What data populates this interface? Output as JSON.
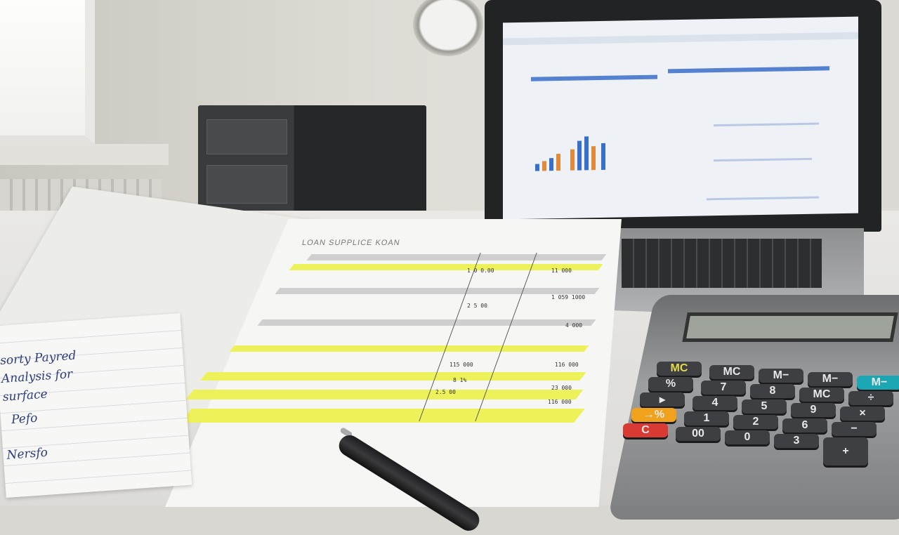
{
  "scene": {
    "document_title": "LOAN SUPPLICE KOAN",
    "document_values": [
      "1 0 0.00",
      "11 000",
      "1 059 1000",
      "2 5 00",
      "4 000",
      "115 000",
      "116 000",
      "8 1%",
      "2.5 00",
      "23 000",
      "116 000"
    ],
    "handwriting": [
      "sorty Payred",
      "Analysis for",
      "surface",
      "Pefo",
      "Nersfo"
    ],
    "calculator_keys": [
      [
        "MC",
        "MC",
        "M−",
        "M−",
        "M−"
      ],
      [
        "%",
        "7",
        "8",
        "MC",
        "÷"
      ],
      [
        "▸",
        "4",
        "5",
        "9",
        "×"
      ],
      [
        "→%",
        "1",
        "2",
        "6",
        "−"
      ],
      [
        "C",
        "00",
        "0",
        "3",
        "+"
      ]
    ],
    "colors": {
      "highlight": "#eef25a",
      "calc_body": "#8e8f91",
      "key_dark": "#3e3f42",
      "key_orange": "#f0a21c",
      "key_red": "#d93a34",
      "key_teal": "#1aa6b3",
      "sheet_blue": "#3a6fc9"
    }
  }
}
